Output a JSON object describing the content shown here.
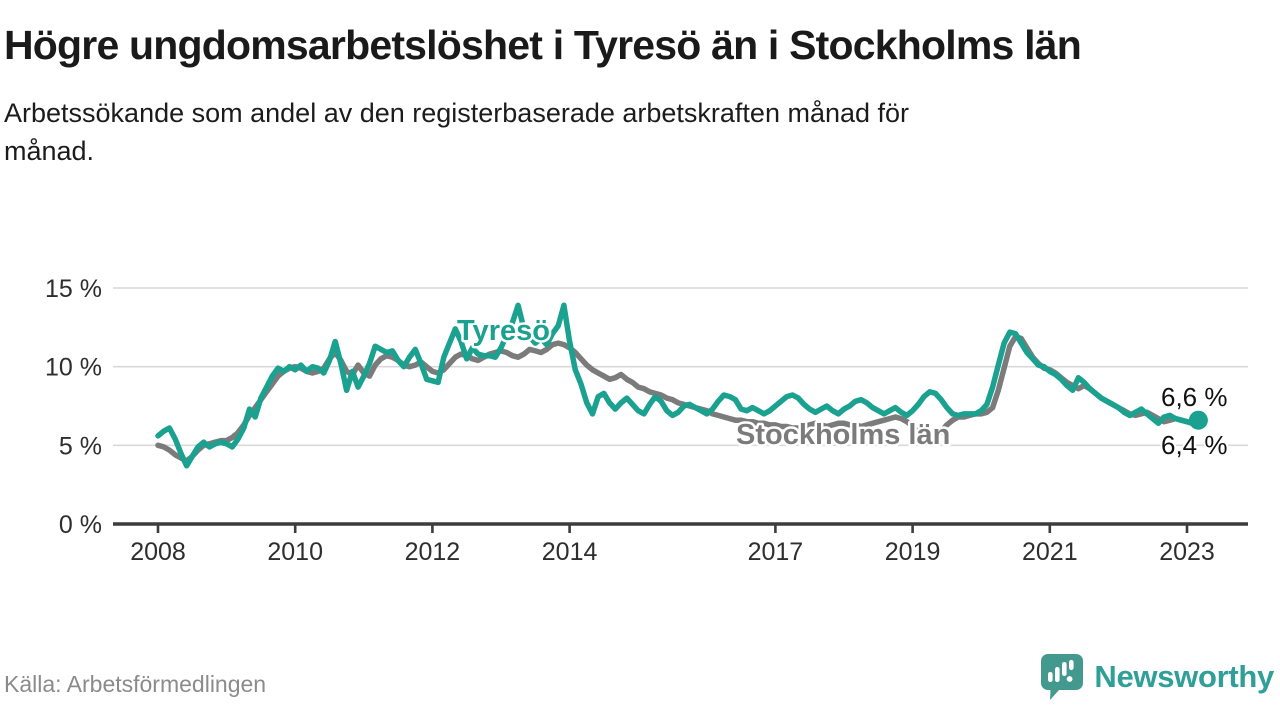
{
  "header": {
    "title": "Högre ungdomsarbetslöshet i Tyresö än i Stockholms län",
    "subtitle": "Arbetssökande som andel av den registerbaserade arbetskraften månad för månad."
  },
  "footer": {
    "source": "Källa: Arbetsförmedlingen",
    "brand": "Newsworthy"
  },
  "colors": {
    "tyreso": "#1aa18f",
    "stockholm": "#7b7b7b",
    "axis": "#3c3c3c",
    "gridline": "#d9d9d9",
    "brand_teal": "#44998f"
  },
  "chart_data": {
    "type": "line",
    "title": "Högre ungdomsarbetslöshet i Tyresö än i Stockholms län",
    "subtitle": "Arbetssökande som andel av den registerbaserade arbetskraften månad för månad.",
    "unit": "%",
    "x_start_year": 2008,
    "step_months": 1,
    "ylim": [
      0,
      15
    ],
    "yticks": [
      0,
      5,
      10,
      15
    ],
    "ytick_labels": [
      "0 %",
      "5 %",
      "10 %",
      "15 %"
    ],
    "xticks": [
      2008,
      2010,
      2012,
      2014,
      2017,
      2019,
      2021,
      2023
    ],
    "grid": "horizontal",
    "legend_position": "inline-labels",
    "series": [
      {
        "name": "Stockholms län",
        "color": "#7b7b7b",
        "end_label": "6,4 %",
        "values": [
          5.0,
          4.9,
          4.7,
          4.4,
          4.2,
          4.0,
          4.3,
          4.7,
          5.0,
          5.1,
          5.2,
          5.3,
          5.3,
          5.5,
          5.8,
          6.3,
          6.9,
          7.4,
          7.9,
          8.4,
          8.9,
          9.4,
          9.7,
          9.9,
          10.0,
          9.9,
          9.7,
          9.6,
          9.7,
          9.9,
          10.5,
          10.9,
          10.4,
          9.7,
          9.5,
          10.1,
          9.6,
          9.4,
          10.1,
          10.5,
          10.7,
          10.6,
          10.4,
          10.1,
          10.0,
          10.1,
          10.3,
          10.0,
          9.7,
          9.6,
          9.8,
          10.2,
          10.6,
          10.8,
          10.7,
          10.5,
          10.4,
          10.6,
          10.8,
          10.9,
          11.0,
          10.9,
          10.7,
          10.6,
          10.8,
          11.1,
          11.0,
          10.9,
          11.1,
          11.4,
          11.5,
          11.4,
          11.2,
          10.9,
          10.5,
          10.1,
          9.8,
          9.6,
          9.4,
          9.2,
          9.3,
          9.5,
          9.2,
          9.0,
          8.7,
          8.6,
          8.4,
          8.3,
          8.2,
          8.0,
          7.9,
          7.7,
          7.6,
          7.5,
          7.4,
          7.3,
          7.2,
          7.0,
          6.9,
          6.8,
          6.7,
          6.6,
          6.6,
          6.5,
          6.5,
          6.4,
          6.4,
          6.3,
          6.3,
          6.2,
          6.2,
          6.1,
          6.1,
          6.2,
          6.3,
          6.4,
          6.3,
          6.2,
          6.3,
          6.4,
          6.4,
          6.3,
          6.3,
          6.2,
          6.3,
          6.4,
          6.5,
          6.6,
          6.7,
          6.8,
          6.7,
          6.5,
          6.2,
          5.8,
          5.4,
          5.3,
          5.5,
          5.9,
          6.3,
          6.6,
          6.8,
          6.8,
          6.9,
          7.0,
          7.0,
          7.1,
          7.4,
          8.5,
          9.9,
          11.3,
          11.9,
          11.8,
          11.2,
          10.6,
          10.2,
          9.9,
          9.8,
          9.6,
          9.3,
          9.0,
          8.8,
          8.6,
          8.8,
          8.6,
          8.3,
          8.0,
          7.8,
          7.6,
          7.4,
          7.2,
          7.0,
          6.9,
          7.0,
          7.1,
          6.9,
          6.7,
          6.5,
          6.6,
          6.7,
          6.6,
          6.5,
          6.4,
          6.4
        ]
      },
      {
        "name": "Tyresö",
        "color": "#1aa18f",
        "end_label": "6,6 %",
        "values": [
          5.6,
          5.9,
          6.1,
          5.4,
          4.5,
          3.7,
          4.3,
          4.9,
          5.2,
          4.9,
          5.1,
          5.2,
          5.1,
          4.9,
          5.4,
          6.1,
          7.3,
          6.8,
          8.0,
          8.7,
          9.4,
          9.9,
          9.7,
          10.0,
          9.8,
          10.1,
          9.7,
          10.0,
          9.9,
          9.6,
          10.4,
          11.6,
          10.2,
          8.5,
          9.7,
          8.7,
          9.4,
          10.2,
          11.3,
          11.1,
          10.9,
          11.0,
          10.4,
          10.0,
          10.6,
          11.1,
          10.2,
          9.2,
          9.1,
          9.0,
          10.6,
          11.5,
          12.4,
          11.6,
          10.5,
          11.2,
          10.8,
          10.7,
          10.7,
          10.6,
          11.2,
          12.0,
          12.8,
          13.9,
          12.4,
          11.9,
          11.5,
          11.8,
          11.4,
          12.1,
          12.6,
          13.9,
          11.6,
          9.8,
          8.9,
          7.7,
          7.0,
          8.1,
          8.3,
          7.7,
          7.3,
          7.7,
          8.0,
          7.6,
          7.2,
          7.0,
          7.6,
          8.1,
          7.8,
          7.2,
          6.9,
          7.1,
          7.5,
          7.6,
          7.4,
          7.2,
          7.0,
          7.3,
          7.8,
          8.2,
          8.1,
          7.9,
          7.3,
          7.2,
          7.4,
          7.2,
          7.0,
          7.2,
          7.5,
          7.8,
          8.1,
          8.2,
          8.0,
          7.6,
          7.3,
          7.1,
          7.3,
          7.5,
          7.2,
          7.0,
          7.3,
          7.5,
          7.8,
          7.9,
          7.7,
          7.4,
          7.2,
          7.0,
          7.2,
          7.4,
          7.1,
          6.9,
          7.2,
          7.6,
          8.1,
          8.4,
          8.3,
          7.9,
          7.4,
          7.0,
          6.9,
          7.0,
          7.0,
          7.0,
          7.2,
          7.6,
          8.7,
          10.1,
          11.5,
          12.2,
          12.1,
          11.5,
          10.9,
          10.5,
          10.1,
          10.0,
          9.7,
          9.5,
          9.2,
          8.8,
          8.5,
          9.3,
          9.0,
          8.6,
          8.3,
          8.0,
          7.8,
          7.6,
          7.4,
          7.1,
          6.9,
          7.1,
          7.3,
          7.0,
          6.7,
          6.4,
          6.8,
          6.9,
          6.7,
          6.6,
          6.5,
          6.4,
          6.6
        ]
      }
    ],
    "annotations": {
      "tyreso_label": "Tyresö",
      "stockholm_label": "Stockholms län",
      "tyreso_end_value": "6,6 %",
      "stockholm_end_value": "6,4 %"
    }
  }
}
